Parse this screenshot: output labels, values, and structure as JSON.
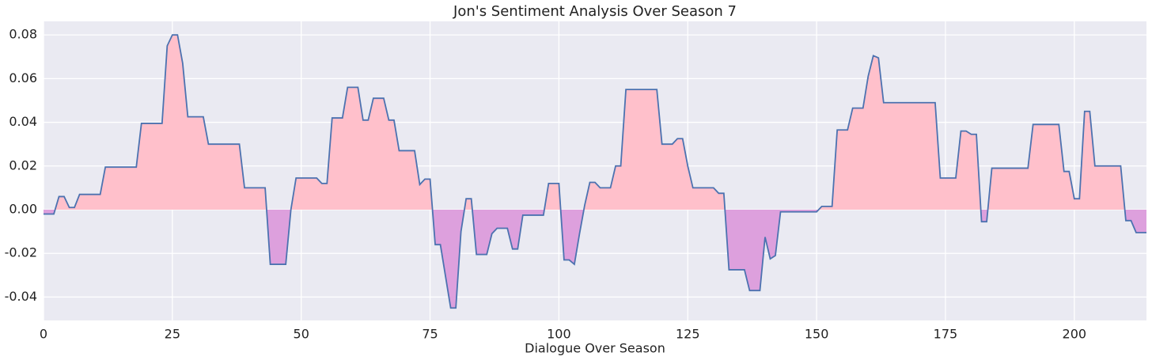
{
  "chart_data": {
    "type": "area",
    "title": "Jon's Sentiment Analysis Over Season 7",
    "x_label": "Dialogue Over Season",
    "x": [
      0,
      2,
      3,
      4,
      5,
      6,
      7,
      11,
      12,
      18,
      19,
      23,
      24,
      25,
      26,
      27,
      28,
      31,
      32,
      38,
      39,
      43,
      44,
      47,
      48,
      49,
      53,
      54,
      55,
      56,
      58,
      59,
      61,
      62,
      63,
      64,
      66,
      67,
      68,
      69,
      72,
      73,
      74,
      75,
      76,
      77,
      79,
      80,
      81,
      82,
      83,
      84,
      86,
      87,
      88,
      90,
      91,
      92,
      93,
      97,
      98,
      100,
      101,
      102,
      103,
      104,
      105,
      106,
      107,
      108,
      110,
      111,
      112,
      113,
      119,
      120,
      122,
      123,
      124,
      125,
      126,
      130,
      131,
      132,
      133,
      136,
      137,
      139,
      140,
      141,
      142,
      143,
      150,
      151,
      153,
      154,
      156,
      157,
      159,
      160,
      161,
      162,
      163,
      173,
      174,
      177,
      178,
      179,
      180,
      181,
      182,
      183,
      184,
      191,
      192,
      197,
      198,
      199,
      200,
      201,
      202,
      203,
      204,
      209,
      210,
      211,
      212,
      214
    ],
    "values": [
      -0.002,
      -0.002,
      0.006,
      0.006,
      0.001,
      0.001,
      0.007,
      0.007,
      0.0195,
      0.0195,
      0.0395,
      0.0395,
      0.075,
      0.08,
      0.08,
      0.067,
      0.0425,
      0.0425,
      0.03,
      0.03,
      0.01,
      0.01,
      -0.025,
      -0.025,
      0,
      0.0145,
      0.0145,
      0.012,
      0.012,
      0.042,
      0.042,
      0.056,
      0.056,
      0.041,
      0.041,
      0.051,
      0.051,
      0.041,
      0.041,
      0.027,
      0.027,
      0.0115,
      0.014,
      0.014,
      -0.016,
      -0.016,
      -0.045,
      -0.045,
      -0.01,
      0.005,
      0.005,
      -0.0205,
      -0.0205,
      -0.011,
      -0.0085,
      -0.0085,
      -0.018,
      -0.018,
      -0.0025,
      -0.0025,
      0.012,
      0.012,
      -0.023,
      -0.023,
      -0.025,
      -0.011,
      0.002,
      0.0125,
      0.0125,
      0.01,
      0.01,
      0.02,
      0.02,
      0.055,
      0.055,
      0.03,
      0.03,
      0.0325,
      0.0325,
      0.02,
      0.01,
      0.01,
      0.0075,
      0.0075,
      -0.0275,
      -0.0275,
      -0.037,
      -0.037,
      -0.0125,
      -0.0225,
      -0.021,
      -0.001,
      -0.001,
      0.0015,
      0.0015,
      0.0365,
      0.0365,
      0.0465,
      0.0465,
      0.061,
      0.0705,
      0.0695,
      0.049,
      0.049,
      0.0145,
      0.0145,
      0.036,
      0.036,
      0.0345,
      0.0345,
      -0.0055,
      -0.0055,
      0.019,
      0.019,
      0.039,
      0.039,
      0.0175,
      0.0175,
      0.005,
      0.005,
      0.045,
      0.045,
      0.02,
      0.02,
      -0.005,
      -0.005,
      -0.0105,
      -0.0105
    ],
    "color": "#4c72b0",
    "positive_fill": "pink",
    "negative_fill": "plum",
    "xlim": [
      0,
      214
    ],
    "ylim": [
      -0.0507,
      0.0862
    ],
    "xticks": [
      0,
      25,
      50,
      75,
      100,
      125,
      150,
      175,
      200
    ],
    "yticks": [
      -0.04,
      -0.02,
      {
        "value": 0,
        "label": "0.00"
      },
      0.02,
      0.04,
      0.06,
      0.08
    ],
    "grid": true
  }
}
